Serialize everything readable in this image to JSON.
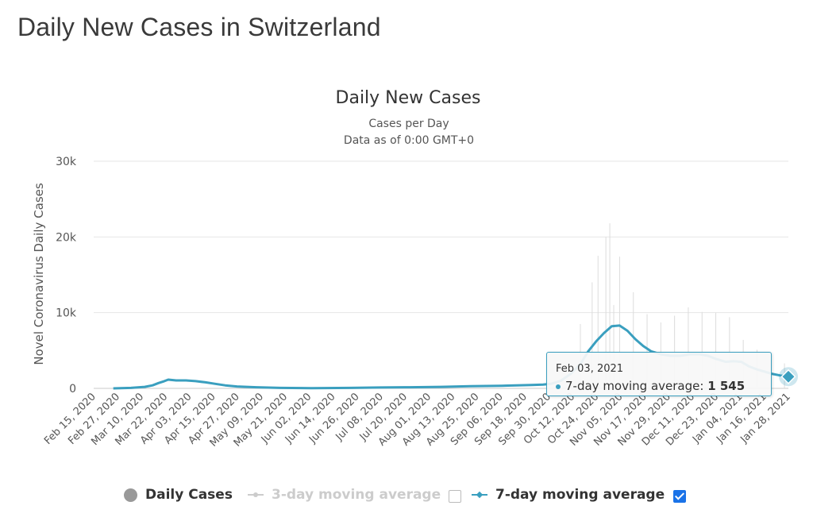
{
  "page": {
    "title": "Daily New Cases in Switzerland"
  },
  "chart_data": {
    "type": "line",
    "title": "Daily New Cases",
    "subtitle": "Cases per Day",
    "subtitle2": "Data as of 0:00 GMT+0",
    "ylabel": "Novel Coronavirus Daily Cases",
    "xlabel": "",
    "ylim": [
      0,
      30000
    ],
    "yticks": [
      0,
      10000,
      20000,
      30000
    ],
    "ytick_labels": [
      "0",
      "10k",
      "20k",
      "30k"
    ],
    "x_start": "2020-02-15",
    "x_end": "2021-02-03",
    "x_tick_labels": [
      "Feb 15, 2020",
      "Feb 27, 2020",
      "Mar 10, 2020",
      "Mar 22, 2020",
      "Apr 03, 2020",
      "Apr 15, 2020",
      "Apr 27, 2020",
      "May 09, 2020",
      "May 21, 2020",
      "Jun 02, 2020",
      "Jun 14, 2020",
      "Jun 26, 2020",
      "Jul 08, 2020",
      "Jul 20, 2020",
      "Aug 01, 2020",
      "Aug 13, 2020",
      "Aug 25, 2020",
      "Sep 06, 2020",
      "Sep 18, 2020",
      "Sep 30, 2020",
      "Oct 12, 2020",
      "Oct 24, 2020",
      "Nov 05, 2020",
      "Nov 17, 2020",
      "Nov 29, 2020",
      "Dec 11, 2020",
      "Dec 23, 2020",
      "Jan 04, 2021",
      "Jan 16, 2021",
      "Jan 28, 2021"
    ],
    "grid": true,
    "legend_position": "bottom",
    "series": [
      {
        "name": "Daily Cases",
        "visible": false,
        "color": "#999999",
        "points": [
          [
            "2020-10-20",
            8500
          ],
          [
            "2020-10-26",
            14000
          ],
          [
            "2020-10-29",
            17500
          ],
          [
            "2020-11-02",
            20000
          ],
          [
            "2020-11-04",
            21800
          ],
          [
            "2020-11-06",
            11000
          ],
          [
            "2020-11-09",
            17400
          ],
          [
            "2020-11-16",
            12700
          ],
          [
            "2020-11-23",
            9800
          ],
          [
            "2020-11-30",
            8700
          ],
          [
            "2020-12-07",
            9600
          ],
          [
            "2020-12-14",
            10700
          ],
          [
            "2020-12-21",
            10100
          ],
          [
            "2020-12-28",
            10000
          ],
          [
            "2021-01-04",
            9400
          ],
          [
            "2021-01-11",
            6400
          ],
          [
            "2021-01-18",
            5100
          ],
          [
            "2021-01-25",
            3800
          ],
          [
            "2021-02-01",
            3300
          ]
        ]
      },
      {
        "name": "3-day moving average",
        "visible": false,
        "color": "#cccccc",
        "points": []
      },
      {
        "name": "7-day moving average",
        "visible": true,
        "color": "#3a9fbf",
        "points": [
          [
            "2020-02-25",
            0
          ],
          [
            "2020-03-05",
            60
          ],
          [
            "2020-03-12",
            200
          ],
          [
            "2020-03-16",
            400
          ],
          [
            "2020-03-19",
            700
          ],
          [
            "2020-03-22",
            950
          ],
          [
            "2020-03-24",
            1150
          ],
          [
            "2020-03-28",
            1050
          ],
          [
            "2020-04-02",
            1050
          ],
          [
            "2020-04-07",
            950
          ],
          [
            "2020-04-12",
            800
          ],
          [
            "2020-04-17",
            600
          ],
          [
            "2020-04-22",
            400
          ],
          [
            "2020-04-28",
            250
          ],
          [
            "2020-05-08",
            150
          ],
          [
            "2020-05-20",
            60
          ],
          [
            "2020-06-05",
            30
          ],
          [
            "2020-06-25",
            60
          ],
          [
            "2020-07-10",
            120
          ],
          [
            "2020-07-25",
            150
          ],
          [
            "2020-08-10",
            200
          ],
          [
            "2020-08-25",
            280
          ],
          [
            "2020-09-10",
            350
          ],
          [
            "2020-09-25",
            450
          ],
          [
            "2020-10-01",
            500
          ],
          [
            "2020-10-05",
            600
          ],
          [
            "2020-10-10",
            1000
          ],
          [
            "2020-10-15",
            1900
          ],
          [
            "2020-10-20",
            3200
          ],
          [
            "2020-10-24",
            4900
          ],
          [
            "2020-10-28",
            6200
          ],
          [
            "2020-11-01",
            7300
          ],
          [
            "2020-11-05",
            8200
          ],
          [
            "2020-11-09",
            8300
          ],
          [
            "2020-11-13",
            7600
          ],
          [
            "2020-11-17",
            6500
          ],
          [
            "2020-11-21",
            5600
          ],
          [
            "2020-11-25",
            4900
          ],
          [
            "2020-11-30",
            4500
          ],
          [
            "2020-12-05",
            4300
          ],
          [
            "2020-12-10",
            4300
          ],
          [
            "2020-12-15",
            4500
          ],
          [
            "2020-12-20",
            4500
          ],
          [
            "2020-12-24",
            4300
          ],
          [
            "2020-12-28",
            3900
          ],
          [
            "2021-01-02",
            3500
          ],
          [
            "2021-01-06",
            3600
          ],
          [
            "2021-01-10",
            3500
          ],
          [
            "2021-01-14",
            2900
          ],
          [
            "2021-01-18",
            2500
          ],
          [
            "2021-01-22",
            2200
          ],
          [
            "2021-01-26",
            1900
          ],
          [
            "2021-01-30",
            1700
          ],
          [
            "2021-02-03",
            1545
          ]
        ]
      }
    ]
  },
  "tooltip": {
    "date": "Feb 03, 2021",
    "series_label": "7-day moving average: ",
    "value": "1 545"
  },
  "legend": {
    "items": [
      {
        "label": "Daily Cases",
        "icon": "circle-icon",
        "active": true
      },
      {
        "label": "3-day moving average",
        "icon": "line-circle-icon",
        "active": false,
        "checked": false
      },
      {
        "label": "7-day moving average",
        "icon": "line-diamond-icon",
        "active": true,
        "checked": true
      }
    ]
  }
}
